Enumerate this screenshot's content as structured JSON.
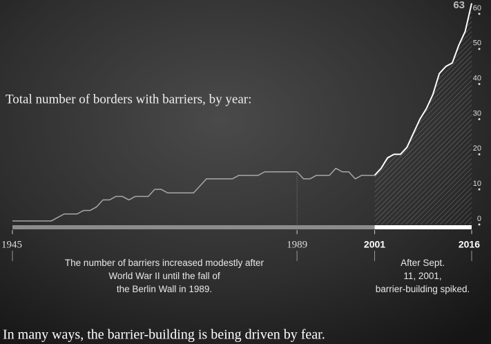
{
  "chart_data": {
    "type": "line",
    "title": "Total number of borders with barriers, by year:",
    "x": [
      1945,
      1946,
      1947,
      1948,
      1949,
      1950,
      1951,
      1952,
      1953,
      1954,
      1955,
      1956,
      1957,
      1958,
      1959,
      1960,
      1961,
      1962,
      1963,
      1964,
      1965,
      1966,
      1967,
      1968,
      1969,
      1970,
      1971,
      1972,
      1973,
      1974,
      1975,
      1976,
      1977,
      1978,
      1979,
      1980,
      1981,
      1982,
      1983,
      1984,
      1985,
      1986,
      1987,
      1988,
      1989,
      1990,
      1991,
      1992,
      1993,
      1994,
      1995,
      1996,
      1997,
      1998,
      1999,
      2000,
      2001,
      2002,
      2003,
      2004,
      2005,
      2006,
      2007,
      2008,
      2009,
      2010,
      2011,
      2012,
      2013,
      2014,
      2015,
      2016
    ],
    "values": [
      1,
      1,
      1,
      1,
      1,
      1,
      1,
      2,
      3,
      3,
      3,
      4,
      4,
      5,
      7,
      7,
      8,
      8,
      7,
      8,
      8,
      8,
      10,
      10,
      9,
      9,
      9,
      9,
      9,
      11,
      13,
      13,
      13,
      13,
      13,
      14,
      14,
      14,
      14,
      15,
      15,
      15,
      15,
      15,
      15,
      13,
      13,
      14,
      14,
      14,
      16,
      15,
      15,
      13,
      14,
      14,
      14,
      16,
      19,
      20,
      20,
      22,
      26,
      30,
      33,
      37,
      43,
      45,
      46,
      51,
      55,
      63
    ],
    "value_label": "63",
    "color": "#ffffff",
    "xlim": [
      1945,
      2016
    ],
    "xticks": [
      1945,
      1989,
      2001,
      2016
    ],
    "ylim": [
      0,
      60
    ],
    "yticks": [
      0,
      10,
      20,
      30,
      40,
      50,
      60
    ],
    "annotations": [
      "The number of barriers increased modestly after World War II until the fall of the Berlin Wall in 1989.",
      "After Sept. 11, 2001, barrier-building spiked."
    ],
    "footer": "In many ways, the barrier-building is being driven by fear."
  }
}
